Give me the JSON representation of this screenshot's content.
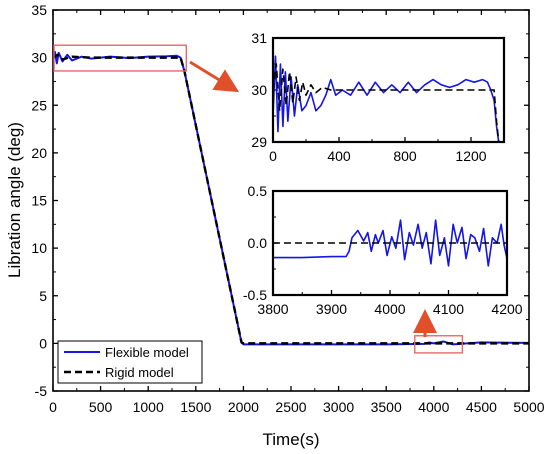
{
  "chart_data": {
    "type": "line",
    "xlabel": "Time(s)",
    "ylabel": "Libration angle (deg)",
    "xlim": [
      0,
      5000
    ],
    "ylim": [
      -5,
      35
    ],
    "xticks": [
      "0",
      "500",
      "1000",
      "1500",
      "2000",
      "2500",
      "3000",
      "3500",
      "4000",
      "4500",
      "5000"
    ],
    "yticks": [
      "-5",
      "0",
      "5",
      "10",
      "15",
      "20",
      "25",
      "30",
      "35"
    ],
    "legend": {
      "placement": "bottom-left",
      "entries": [
        "Flexible model",
        "Rigid model"
      ]
    },
    "series": [
      {
        "name": "Flexible model",
        "color": "#1515e6",
        "style": "solid",
        "x": [
          0,
          20,
          40,
          60,
          100,
          150,
          200,
          300,
          400,
          600,
          800,
          1000,
          1200,
          1300,
          1340,
          1380,
          1980,
          2000,
          2500,
          3000,
          3500,
          3900,
          3950,
          4000,
          4100,
          4200,
          4500,
          5000
        ],
        "y": [
          30,
          30.6,
          29.4,
          30.5,
          29.6,
          30.3,
          29.7,
          30.1,
          29.9,
          30.1,
          29.95,
          30.1,
          30.15,
          30.2,
          30,
          28.6,
          0.1,
          -0.1,
          -0.1,
          -0.1,
          -0.1,
          -0.05,
          0.1,
          0.0,
          0.2,
          -0.1,
          0.1,
          0.05
        ]
      },
      {
        "name": "Rigid model",
        "color": "#000000",
        "style": "dashed",
        "x": [
          0,
          50,
          100,
          200,
          400,
          1000,
          1340,
          1380,
          1980,
          2000,
          5000
        ],
        "y": [
          30,
          30.3,
          29.8,
          30.1,
          30,
          30,
          30,
          28.6,
          0.1,
          0,
          0
        ]
      }
    ],
    "insets": [
      {
        "placement": "top-right",
        "xlim": [
          0,
          1400
        ],
        "ylim": [
          29,
          31
        ],
        "xticks": [
          "0",
          "400",
          "800",
          "1200"
        ],
        "yticks": [
          "29",
          "30",
          "31"
        ],
        "series": [
          {
            "name": "Flexible model",
            "x": [
              0,
              15,
              30,
              45,
              60,
              75,
              90,
              110,
              130,
              150,
              175,
              200,
              230,
              260,
              290,
              320,
              350,
              380,
              420,
              470,
              520,
              570,
              620,
              670,
              720,
              770,
              820,
              870,
              920,
              970,
              1020,
              1070,
              1120,
              1170,
              1220,
              1270,
              1300,
              1320,
              1340,
              1355,
              1370
            ],
            "y": [
              29.5,
              30.65,
              29.2,
              30.5,
              29.3,
              30.35,
              29.4,
              30.25,
              29.5,
              30.1,
              29.6,
              29.7,
              29.95,
              29.6,
              29.7,
              29.9,
              30.2,
              29.9,
              30.0,
              29.9,
              30.15,
              29.9,
              30.15,
              29.95,
              30.1,
              29.95,
              30.15,
              29.95,
              30.1,
              30.2,
              30.1,
              30.05,
              30.1,
              30.2,
              30.15,
              30.2,
              30.15,
              30.0,
              29.8,
              29.3,
              28.95
            ]
          },
          {
            "name": "Rigid model",
            "x": [
              0,
              20,
              40,
              60,
              80,
              100,
              120,
              140,
              160,
              180,
              200,
              230,
              260,
              300,
              350,
              400,
              1340,
              1355,
              1370
            ],
            "y": [
              30,
              30.5,
              29.6,
              30.4,
              29.7,
              30.35,
              29.75,
              30.25,
              29.8,
              30.15,
              29.9,
              30.1,
              29.95,
              30.05,
              30.0,
              30.0,
              30.0,
              29.4,
              28.95
            ]
          }
        ]
      },
      {
        "placement": "middle-right",
        "xlim": [
          3800,
          4200
        ],
        "ylim": [
          -0.5,
          0.5
        ],
        "xticks": [
          "3800",
          "3900",
          "4000",
          "4100",
          "4200"
        ],
        "yticks": [
          "-0.5",
          "0.0",
          "0.5"
        ],
        "series": [
          {
            "name": "Flexible model",
            "x": [
              3800,
              3850,
              3900,
              3925,
              3930,
              3935,
              3945,
              3955,
              3962,
              3968,
              3975,
              3980,
              3988,
              3995,
              4003,
              4010,
              4018,
              4025,
              4033,
              4040,
              4048,
              4055,
              4062,
              4070,
              4078,
              4085,
              4093,
              4100,
              4108,
              4115,
              4123,
              4130,
              4138,
              4145,
              4153,
              4160,
              4168,
              4175,
              4183,
              4190,
              4195,
              4200
            ],
            "y": [
              -0.14,
              -0.14,
              -0.13,
              -0.13,
              -0.08,
              0.05,
              0.12,
              0.02,
              0.1,
              -0.08,
              0.08,
              0.0,
              0.12,
              -0.12,
              0.06,
              -0.05,
              0.22,
              -0.16,
              0.1,
              -0.02,
              0.18,
              -0.05,
              0.1,
              -0.2,
              0.22,
              -0.12,
              0.05,
              -0.22,
              0.18,
              0.0,
              0.15,
              -0.15,
              0.08,
              0.05,
              -0.08,
              0.14,
              -0.22,
              0.05,
              0.0,
              0.18,
              -0.02,
              -0.15
            ]
          },
          {
            "name": "Rigid model",
            "x": [
              3800,
              4200
            ],
            "y": [
              0.0,
              0.0
            ]
          }
        ]
      }
    ],
    "highlight_boxes": [
      {
        "xlim": [
          0,
          1400
        ],
        "ylim": [
          28.6,
          31.3
        ]
      },
      {
        "xlim": [
          3800,
          4300
        ],
        "ylim": [
          -1,
          0.8
        ]
      }
    ]
  }
}
